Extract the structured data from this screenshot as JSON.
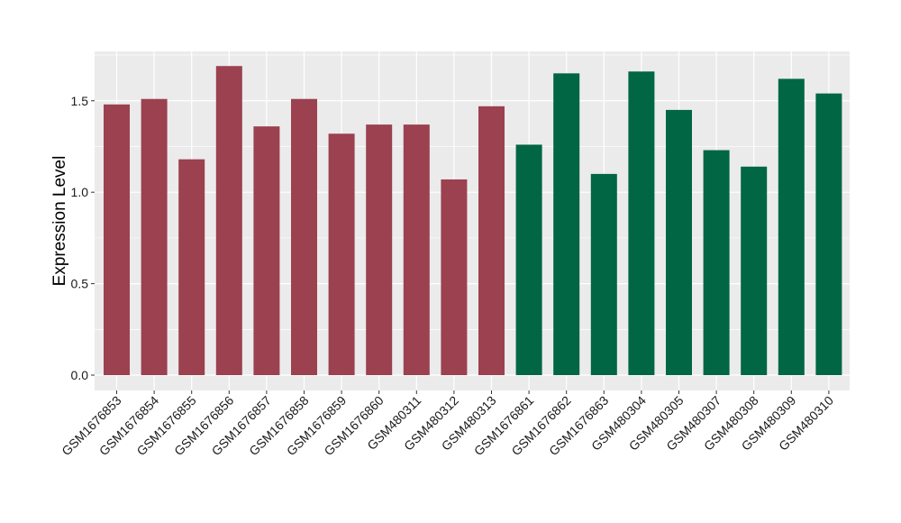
{
  "chart_data": {
    "type": "bar",
    "title": "",
    "xlabel": "",
    "ylabel": "Expression Level",
    "ylim": [
      0,
      1.77
    ],
    "yticks": [
      0.0,
      0.5,
      1.0,
      1.5
    ],
    "ytick_labels": [
      "0.0",
      "0.5",
      "1.0",
      "1.5"
    ],
    "grid": true,
    "legend": "none",
    "categories": [
      "GSM1676853",
      "GSM1676854",
      "GSM1676855",
      "GSM1676856",
      "GSM1676857",
      "GSM1676858",
      "GSM1676859",
      "GSM1676860",
      "GSM480311",
      "GSM480312",
      "GSM480313",
      "GSM1676861",
      "GSM1676862",
      "GSM1676863",
      "GSM480304",
      "GSM480305",
      "GSM480307",
      "GSM480308",
      "GSM480309",
      "GSM480310"
    ],
    "values": [
      1.48,
      1.51,
      1.18,
      1.69,
      1.36,
      1.51,
      1.32,
      1.37,
      1.37,
      1.07,
      1.47,
      1.26,
      1.65,
      1.1,
      1.66,
      1.45,
      1.23,
      1.14,
      1.62,
      1.54
    ],
    "bar_colors": [
      "#9b4150",
      "#9b4150",
      "#9b4150",
      "#9b4150",
      "#9b4150",
      "#9b4150",
      "#9b4150",
      "#9b4150",
      "#9b4150",
      "#9b4150",
      "#9b4150",
      "#006644",
      "#006644",
      "#006644",
      "#006644",
      "#006644",
      "#006644",
      "#006644",
      "#006644",
      "#006644"
    ],
    "panel_color": "#ebebeb",
    "grid_color": "#ffffff"
  }
}
